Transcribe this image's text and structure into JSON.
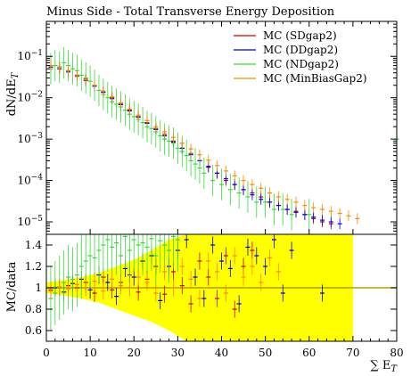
{
  "colors": {
    "sd": "#cc0000",
    "dd": "#0000dd",
    "nd": "#33dd33",
    "minbias": "#ff8800",
    "band": "#ffff00",
    "ratio_line": "#b3a000"
  },
  "chart_data": [
    {
      "type": "line",
      "panel": "main",
      "title": "Minus Side - Total Transverse Energy Deposition",
      "xlabel": "",
      "ylabel": "dN/dE_T",
      "log_y": true,
      "xlim": [
        0,
        80
      ],
      "ylim": [
        5e-06,
        0.7
      ],
      "yticks": [
        {
          "v": 0.1,
          "b": "10",
          "e": "−1"
        },
        {
          "v": 0.01,
          "b": "10",
          "e": "−2"
        },
        {
          "v": 0.001,
          "b": "10",
          "e": "−3"
        },
        {
          "v": 0.0001,
          "b": "10",
          "e": "−4"
        },
        {
          "v": 1e-05,
          "b": "10",
          "e": "−5"
        }
      ],
      "legend_position": "top-right",
      "series": [
        {
          "name": "MC (SDgap2)",
          "key": "sd",
          "x": [
            1,
            3,
            5,
            7,
            9,
            11,
            13,
            15,
            17,
            19,
            21,
            23,
            25,
            27,
            29,
            31,
            33,
            35,
            37,
            39,
            41,
            43,
            45,
            47,
            49,
            51,
            53,
            55,
            57,
            59,
            61,
            63,
            65
          ],
          "y": [
            0.06,
            0.055,
            0.045,
            0.035,
            0.028,
            0.02,
            0.014,
            0.01,
            0.007,
            0.005,
            0.0035,
            0.0025,
            0.0018,
            0.0013,
            0.0009,
            0.0006,
            0.00045,
            0.0003,
            0.00022,
            0.00015,
            0.0001,
            8e-05,
            6e-05,
            5e-05,
            4e-05,
            3e-05,
            2.5e-05,
            2e-05,
            1.8e-05,
            1.5e-05,
            1.2e-05,
            1e-05,
            9e-06
          ]
        },
        {
          "name": "MC (DDgap2)",
          "key": "dd",
          "x": [
            1,
            3,
            5,
            7,
            9,
            11,
            13,
            15,
            17,
            19,
            21,
            23,
            25,
            27,
            29,
            31,
            33,
            35,
            37,
            39,
            41,
            43,
            45,
            47,
            49,
            51,
            53,
            55,
            57,
            59,
            61,
            63,
            65,
            67
          ],
          "y": [
            0.055,
            0.05,
            0.042,
            0.033,
            0.026,
            0.019,
            0.0135,
            0.0095,
            0.0068,
            0.0048,
            0.0034,
            0.0024,
            0.0017,
            0.0012,
            0.00085,
            0.0006,
            0.00042,
            0.0003,
            0.00021,
            0.00015,
            0.00011,
            8e-05,
            6e-05,
            4.5e-05,
            3.5e-05,
            3e-05,
            2.5e-05,
            2e-05,
            1.7e-05,
            1.5e-05,
            1.3e-05,
            1.1e-05,
            1e-05,
            9e-06
          ]
        },
        {
          "name": "MC (NDgap2)",
          "key": "nd",
          "x": [
            1,
            2,
            3,
            4,
            5,
            6,
            7,
            8,
            9,
            10,
            11,
            12,
            13,
            14,
            15,
            16,
            17,
            18,
            19,
            20,
            21,
            22,
            23,
            24,
            25,
            26,
            27,
            28,
            29,
            30,
            31,
            32,
            33,
            34,
            35,
            36,
            38,
            40,
            42,
            44,
            46,
            48,
            50,
            52,
            54,
            56,
            60,
            80
          ],
          "y": [
            0.05,
            0.06,
            0.055,
            0.07,
            0.06,
            0.05,
            0.045,
            0.035,
            0.03,
            0.025,
            0.02,
            0.015,
            0.012,
            0.01,
            0.008,
            0.007,
            0.006,
            0.005,
            0.004,
            0.0035,
            0.003,
            0.0025,
            0.002,
            0.0018,
            0.0015,
            0.0012,
            0.001,
            0.0009,
            0.0008,
            0.0006,
            0.0005,
            0.0004,
            0.0003,
            0.00025,
            0.0002,
            0.00015,
            0.0001,
            8e-05,
            6e-05,
            5e-05,
            4e-05,
            3e-05,
            3e-05,
            2e-05,
            2e-05,
            1.5e-05,
            1.5e-05,
            0.001
          ]
        },
        {
          "name": "MC (MinBiasGap2)",
          "key": "minbias",
          "x": [
            1,
            3,
            5,
            7,
            9,
            11,
            13,
            15,
            17,
            19,
            21,
            23,
            25,
            27,
            29,
            31,
            33,
            35,
            37,
            39,
            41,
            43,
            45,
            47,
            49,
            51,
            53,
            55,
            57,
            59,
            61,
            63,
            65,
            67,
            69,
            71
          ],
          "y": [
            0.06,
            0.052,
            0.044,
            0.034,
            0.027,
            0.02,
            0.0145,
            0.0105,
            0.0075,
            0.0053,
            0.0038,
            0.0028,
            0.002,
            0.0015,
            0.0011,
            0.0008,
            0.00058,
            0.00042,
            0.00031,
            0.00023,
            0.00017,
            0.00013,
            0.0001,
            8e-05,
            6.5e-05,
            5e-05,
            4e-05,
            3.5e-05,
            3e-05,
            2.5e-05,
            2.2e-05,
            2e-05,
            1.8e-05,
            1.6e-05,
            1.4e-05,
            1.2e-05
          ]
        }
      ]
    },
    {
      "type": "line",
      "panel": "ratio",
      "title": "",
      "xlabel": "∑ E_T",
      "ylabel": "MC/data",
      "xlim": [
        0,
        80
      ],
      "ylim": [
        0.5,
        1.5
      ],
      "xticks": [
        0,
        10,
        20,
        30,
        40,
        50,
        60,
        70,
        80
      ],
      "yticks": [
        0.6,
        0.8,
        1,
        1.2,
        1.4
      ],
      "reference_line": 1,
      "uncertainty_band": {
        "x": [
          0,
          4,
          8,
          12,
          16,
          20,
          24,
          28,
          32,
          36,
          40,
          44,
          48,
          52,
          56,
          58,
          62,
          68,
          69,
          70
        ],
        "lo": [
          0.95,
          0.93,
          0.9,
          0.86,
          0.8,
          0.74,
          0.68,
          0.6,
          0.5,
          0.5,
          0.5,
          0.5,
          0.5,
          0.5,
          0.5,
          0.5,
          0.5,
          0.5,
          0.5,
          0.5
        ],
        "hi": [
          1.05,
          1.07,
          1.1,
          1.14,
          1.2,
          1.26,
          1.35,
          1.45,
          1.5,
          1.5,
          1.5,
          1.5,
          1.5,
          1.5,
          1.5,
          1.5,
          1.5,
          1.5,
          1.5,
          1.5
        ]
      },
      "series": [
        {
          "key": "sd",
          "x": [
            1,
            3,
            5,
            7,
            9,
            11,
            13,
            15,
            17,
            19,
            21,
            23,
            25,
            27,
            29,
            31,
            33,
            35,
            37,
            39,
            41,
            43,
            45,
            47
          ],
          "y": [
            0.98,
            1.0,
            1.02,
            1.0,
            1.05,
            0.95,
            1.1,
            0.98,
            1.05,
            1.12,
            0.96,
            1.08,
            1.2,
            0.94,
            1.15,
            1.02,
            0.85,
            1.25,
            1.1,
            0.9,
            1.3,
            0.8,
            1.2,
            1.35
          ]
        },
        {
          "key": "dd",
          "x": [
            2,
            4,
            6,
            8,
            10,
            12,
            14,
            16,
            18,
            20,
            22,
            24,
            26,
            28,
            30,
            32,
            34,
            36,
            38,
            40,
            42,
            44,
            46,
            48,
            50,
            52,
            54,
            56,
            63
          ],
          "y": [
            1.0,
            0.96,
            1.04,
            1.08,
            0.98,
            1.12,
            1.05,
            0.92,
            1.18,
            1.1,
            1.25,
            1.3,
            0.88,
            1.2,
            1.35,
            1.45,
            1.1,
            0.9,
            1.4,
            1.25,
            1.18,
            0.85,
            1.38,
            1.3,
            1.2,
            1.45,
            0.95,
            1.35,
            0.95
          ]
        },
        {
          "key": "nd",
          "x": [
            1,
            2,
            3,
            4,
            5,
            6,
            7,
            8,
            9,
            10,
            11,
            12,
            13,
            14,
            15,
            16,
            17,
            18,
            19,
            20,
            21,
            22,
            23,
            24,
            25,
            26,
            27,
            28,
            29,
            30
          ],
          "y": [
            0.9,
            0.95,
            1.0,
            1.05,
            1.1,
            1.08,
            1.12,
            1.2,
            1.25,
            1.3,
            1.28,
            1.35,
            1.4,
            1.45,
            1.38,
            1.42,
            1.3,
            1.48,
            1.35,
            1.45,
            1.4,
            1.42,
            1.38,
            1.46,
            1.3,
            1.44,
            1.4,
            1.35,
            1.48,
            1.45
          ]
        },
        {
          "key": "minbias",
          "x": [
            1,
            3,
            5,
            7,
            9,
            11,
            13,
            15,
            17,
            19,
            21,
            23,
            25,
            27,
            29,
            31,
            33,
            35,
            37,
            39,
            41,
            43,
            45,
            47,
            49,
            51,
            53
          ],
          "y": [
            0.97,
            1.01,
            0.99,
            1.03,
            1.0,
            1.06,
            0.97,
            1.08,
            1.02,
            1.0,
            1.1,
            1.05,
            0.95,
            1.15,
            1.0,
            1.2,
            1.08,
            0.9,
            1.25,
            1.15,
            0.95,
            1.3,
            1.1,
            1.2,
            1.05,
            1.28,
            1.15
          ]
        }
      ]
    }
  ]
}
